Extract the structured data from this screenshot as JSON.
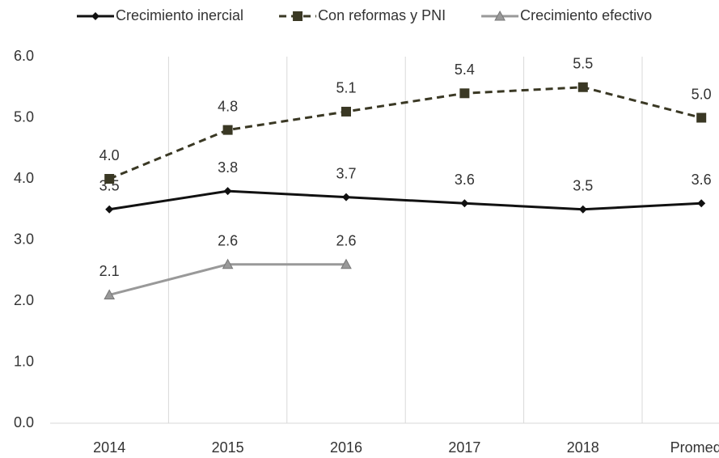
{
  "chart_data": {
    "type": "line",
    "categories": [
      "2014",
      "2015",
      "2016",
      "2017",
      "2018",
      "Promedio"
    ],
    "series": [
      {
        "name": "Crecimiento inercial",
        "color": "#111111",
        "marker": "diamond",
        "dashed": false,
        "values": [
          3.5,
          3.8,
          3.7,
          3.6,
          3.5,
          3.6
        ],
        "value_labels": [
          "3.5",
          "3.8",
          "3.7",
          "3.6",
          "3.5",
          "3.6"
        ]
      },
      {
        "name": "Con reformas y PNI",
        "color": "#3a3824",
        "marker": "square",
        "dashed": true,
        "values": [
          4.0,
          4.8,
          5.1,
          5.4,
          5.5,
          5.0
        ],
        "value_labels": [
          "4.0",
          "4.8",
          "5.1",
          "5.4",
          "5.5",
          "5.0"
        ]
      },
      {
        "name": "Crecimiento efectivo",
        "color": "#999999",
        "marker": "triangle",
        "dashed": false,
        "values": [
          2.1,
          2.6,
          2.6,
          null,
          null,
          null
        ],
        "value_labels": [
          "2.1",
          "2.6",
          "2.6",
          null,
          null,
          null
        ]
      }
    ],
    "ylim": [
      0,
      6
    ],
    "yticks": [
      {
        "value": 0,
        "label": "0.0"
      },
      {
        "value": 1,
        "label": "1.0"
      },
      {
        "value": 2,
        "label": "2.0"
      },
      {
        "value": 3,
        "label": "3.0"
      },
      {
        "value": 4,
        "label": "4.0"
      },
      {
        "value": 5,
        "label": "5.0"
      },
      {
        "value": 6,
        "label": "6.0"
      }
    ],
    "grid": true,
    "legend": "top"
  }
}
